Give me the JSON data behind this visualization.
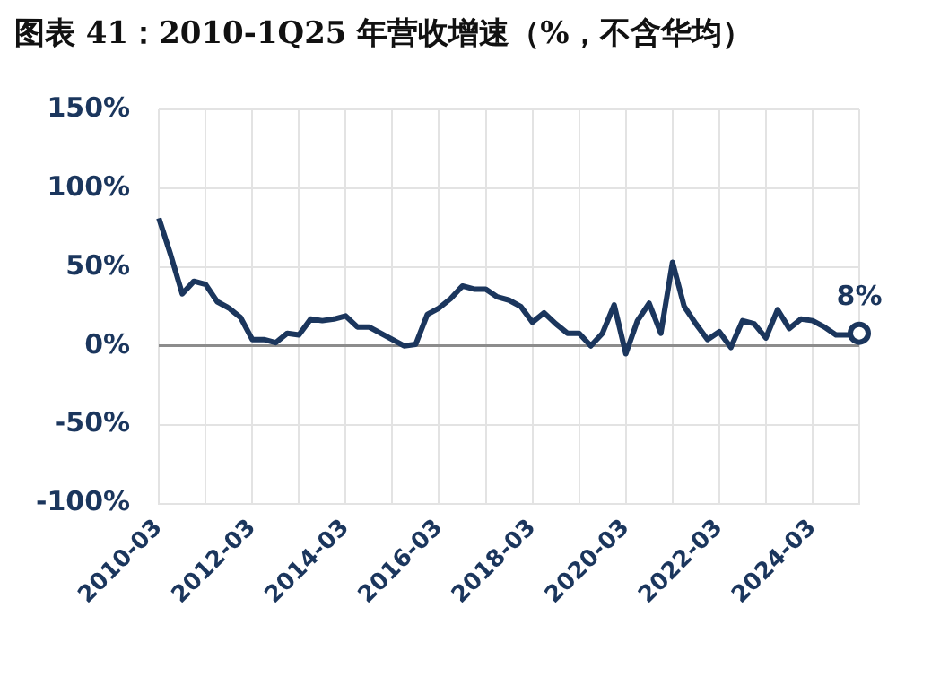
{
  "chart_data": {
    "type": "line",
    "title": "图表 41：2010-1Q25 年营收增速（%，不含华均）",
    "categories": [
      "2010-03",
      null,
      null,
      null,
      null,
      null,
      null,
      null,
      "2012-03",
      null,
      null,
      null,
      null,
      null,
      null,
      null,
      "2014-03",
      null,
      null,
      null,
      null,
      null,
      null,
      null,
      "2016-03",
      null,
      null,
      null,
      null,
      null,
      null,
      null,
      "2018-03",
      null,
      null,
      null,
      null,
      null,
      null,
      null,
      "2020-03",
      null,
      null,
      null,
      null,
      null,
      null,
      null,
      "2022-03",
      null,
      null,
      null,
      null,
      null,
      null,
      null,
      "2024-03",
      null,
      null,
      null,
      null
    ],
    "series": [
      {
        "color": "#1b365d",
        "values": [
          81,
          58,
          33,
          41,
          39,
          28,
          24,
          18,
          4,
          4,
          2,
          8,
          7,
          17,
          16,
          17,
          19,
          12,
          12,
          8,
          4,
          0,
          1,
          20,
          24,
          30,
          38,
          36,
          36,
          31,
          29,
          25,
          15,
          21,
          14,
          8,
          8,
          0,
          8,
          26,
          -5,
          16,
          27,
          8,
          53,
          25,
          14,
          4,
          9,
          -1,
          16,
          14,
          5,
          23,
          11,
          17,
          16,
          12,
          7,
          7,
          8
        ]
      }
    ],
    "ylim": [
      -100,
      150
    ],
    "yticks": [
      {
        "value": -100,
        "label": "-100%"
      },
      {
        "value": -50,
        "label": "-50%"
      },
      {
        "value": 0,
        "label": "0%"
      },
      {
        "value": 50,
        "label": "50%"
      },
      {
        "value": 100,
        "label": "100%"
      },
      {
        "value": 150,
        "label": "150%"
      }
    ],
    "grid": true,
    "line_style": "solid",
    "annotations": [
      {
        "text": "8%",
        "y": 8
      }
    ]
  }
}
